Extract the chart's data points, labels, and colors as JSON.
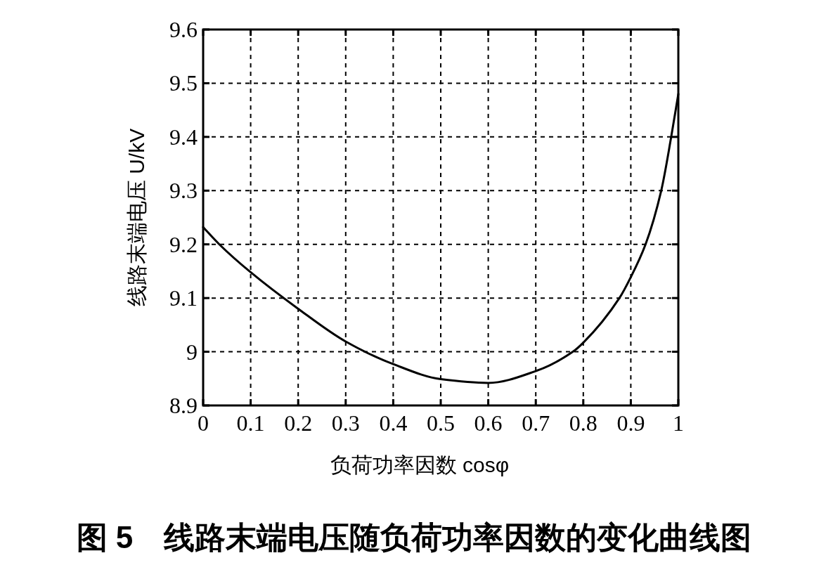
{
  "chart_data": {
    "type": "line",
    "title": "图 5　线路末端电压随负荷功率因数的变化曲线图",
    "xlabel": "负荷功率因数 cosφ",
    "ylabel": "线路末端电压 U/kV",
    "xlim": [
      0,
      1
    ],
    "ylim": [
      8.9,
      9.6
    ],
    "xticks": [
      0,
      0.1,
      0.2,
      0.3,
      0.4,
      0.5,
      0.6,
      0.7,
      0.8,
      0.9,
      1
    ],
    "yticks": [
      8.9,
      9,
      9.1,
      9.2,
      9.3,
      9.4,
      9.5,
      9.6
    ],
    "grid": true,
    "line_style": "solid",
    "color": "#000000",
    "x": [
      0,
      0.034,
      0.1,
      0.2,
      0.3,
      0.4,
      0.5,
      0.6,
      0.7,
      0.778,
      0.8,
      0.876,
      0.9,
      0.931,
      0.964,
      0.985,
      1
    ],
    "values": [
      9.232,
      9.2,
      9.148,
      9.08,
      9.019,
      8.977,
      8.949,
      8.942,
      8.964,
      9.0,
      9.017,
      9.1,
      9.139,
      9.2,
      9.3,
      9.4,
      9.48
    ]
  }
}
